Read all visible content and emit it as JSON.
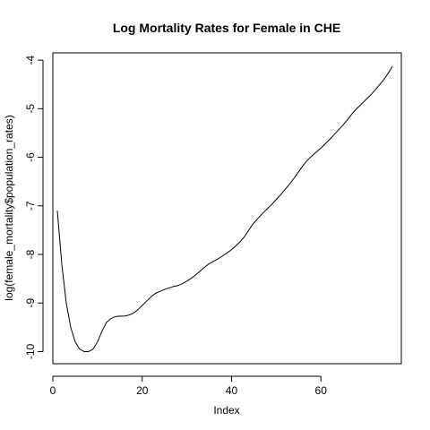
{
  "chart_data": {
    "type": "line",
    "title": "Log Mortality Rates for Female in CHE",
    "xlabel": "Index",
    "ylabel": "log(female_mortality$population_rates)",
    "xlim": [
      0,
      78
    ],
    "ylim": [
      -10.25,
      -3.85
    ],
    "grid": false,
    "legend": "none",
    "xticks": [
      0,
      20,
      40,
      60
    ],
    "yticks": [
      -10,
      -9,
      -8,
      -7,
      -6,
      -5,
      -4
    ],
    "series": [
      {
        "color": "#000000",
        "points": [
          [
            1,
            -7.1
          ],
          [
            2,
            -8.2
          ],
          [
            3,
            -9.0
          ],
          [
            4,
            -9.5
          ],
          [
            5,
            -9.8
          ],
          [
            6,
            -9.95
          ],
          [
            7,
            -10.0
          ],
          [
            8,
            -10.0
          ],
          [
            9,
            -9.95
          ],
          [
            10,
            -9.8
          ],
          [
            11,
            -9.58
          ],
          [
            12,
            -9.4
          ],
          [
            13,
            -9.32
          ],
          [
            14,
            -9.28
          ],
          [
            15,
            -9.27
          ],
          [
            16,
            -9.27
          ],
          [
            17,
            -9.25
          ],
          [
            18,
            -9.21
          ],
          [
            19,
            -9.14
          ],
          [
            20,
            -9.05
          ],
          [
            21,
            -8.96
          ],
          [
            22,
            -8.87
          ],
          [
            23,
            -8.8
          ],
          [
            24,
            -8.76
          ],
          [
            25,
            -8.72
          ],
          [
            26,
            -8.69
          ],
          [
            27,
            -8.66
          ],
          [
            28,
            -8.64
          ],
          [
            29,
            -8.6
          ],
          [
            30,
            -8.55
          ],
          [
            31,
            -8.49
          ],
          [
            32,
            -8.42
          ],
          [
            33,
            -8.34
          ],
          [
            34,
            -8.26
          ],
          [
            35,
            -8.19
          ],
          [
            36,
            -8.14
          ],
          [
            37,
            -8.09
          ],
          [
            38,
            -8.03
          ],
          [
            39,
            -7.97
          ],
          [
            40,
            -7.9
          ],
          [
            41,
            -7.82
          ],
          [
            42,
            -7.73
          ],
          [
            43,
            -7.62
          ],
          [
            44,
            -7.48
          ],
          [
            45,
            -7.35
          ],
          [
            46,
            -7.25
          ],
          [
            47,
            -7.15
          ],
          [
            48,
            -7.06
          ],
          [
            49,
            -6.97
          ],
          [
            50,
            -6.87
          ],
          [
            51,
            -6.77
          ],
          [
            52,
            -6.66
          ],
          [
            53,
            -6.55
          ],
          [
            54,
            -6.43
          ],
          [
            55,
            -6.3
          ],
          [
            56,
            -6.17
          ],
          [
            57,
            -6.06
          ],
          [
            58,
            -5.97
          ],
          [
            59,
            -5.89
          ],
          [
            60,
            -5.81
          ],
          [
            61,
            -5.72
          ],
          [
            62,
            -5.63
          ],
          [
            63,
            -5.53
          ],
          [
            64,
            -5.43
          ],
          [
            65,
            -5.33
          ],
          [
            66,
            -5.22
          ],
          [
            67,
            -5.1
          ],
          [
            68,
            -5.0
          ],
          [
            69,
            -4.91
          ],
          [
            70,
            -4.82
          ],
          [
            71,
            -4.73
          ],
          [
            72,
            -4.63
          ],
          [
            73,
            -4.52
          ],
          [
            74,
            -4.41
          ],
          [
            75,
            -4.28
          ],
          [
            76,
            -4.13
          ]
        ]
      }
    ]
  }
}
